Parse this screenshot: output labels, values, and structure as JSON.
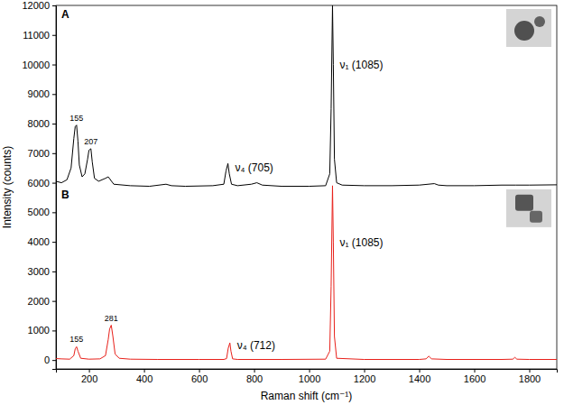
{
  "chart_data": {
    "type": "line",
    "x_label": "Raman shift (cm⁻¹)",
    "y_label": "Intensity (counts)",
    "xlim": [
      80,
      1900
    ],
    "xticks": [
      200,
      400,
      600,
      800,
      1000,
      1200,
      1400,
      1600,
      1800
    ],
    "ylim": [
      -300,
      12000
    ],
    "yticks": [
      0,
      1000,
      2000,
      3000,
      4000,
      5000,
      6000,
      7000,
      8000,
      9000,
      10000,
      11000,
      12000
    ],
    "series": [
      {
        "name": "A",
        "color": "#000000",
        "x": [
          80,
          100,
          120,
          135,
          145,
          150,
          155,
          160,
          165,
          175,
          185,
          195,
          200,
          207,
          212,
          220,
          235,
          260,
          270,
          290,
          350,
          420,
          480,
          500,
          550,
          650,
          690,
          698,
          705,
          710,
          718,
          740,
          790,
          810,
          830,
          900,
          1000,
          1060,
          1075,
          1080,
          1085,
          1088,
          1092,
          1100,
          1120,
          1200,
          1300,
          1400,
          1455,
          1470,
          1500,
          1600,
          1700,
          1750,
          1800,
          1900
        ],
        "values": [
          6050,
          6000,
          6100,
          6500,
          7500,
          7900,
          7950,
          7400,
          6600,
          6200,
          6300,
          6800,
          7100,
          7150,
          6700,
          6150,
          6050,
          6150,
          6200,
          5950,
          5900,
          5880,
          5950,
          5900,
          5880,
          5900,
          5950,
          6400,
          6650,
          6300,
          5950,
          5900,
          5950,
          6000,
          5920,
          5880,
          5880,
          5900,
          6300,
          8500,
          12000,
          10000,
          6800,
          6000,
          5920,
          5900,
          5900,
          5920,
          5970,
          5920,
          5900,
          5900,
          5920,
          5920,
          5920,
          5930
        ]
      },
      {
        "name": "B",
        "color": "#e8201a",
        "x": [
          80,
          100,
          130,
          145,
          150,
          155,
          160,
          170,
          200,
          240,
          260,
          270,
          275,
          281,
          287,
          295,
          310,
          350,
          450,
          600,
          690,
          700,
          706,
          712,
          716,
          722,
          740,
          900,
          1060,
          1075,
          1080,
          1085,
          1088,
          1092,
          1100,
          1200,
          1400,
          1425,
          1435,
          1445,
          1500,
          1700,
          1740,
          1748,
          1755,
          1800,
          1900
        ],
        "values": [
          50,
          40,
          30,
          150,
          380,
          450,
          300,
          60,
          30,
          40,
          150,
          700,
          1050,
          1180,
          800,
          200,
          60,
          30,
          20,
          20,
          20,
          50,
          400,
          580,
          300,
          40,
          20,
          20,
          30,
          300,
          2500,
          5900,
          4000,
          800,
          60,
          20,
          20,
          40,
          130,
          40,
          20,
          20,
          30,
          90,
          30,
          20,
          20
        ]
      }
    ],
    "annotations": [
      {
        "text": "155",
        "x": 155,
        "series": 0
      },
      {
        "text": "207",
        "x": 207,
        "series": 0
      },
      {
        "text": "ν₄ (705)",
        "x": 705,
        "series": 0
      },
      {
        "text": "ν₁ (1085)",
        "x": 1085,
        "series": 0
      },
      {
        "text": "155",
        "x": 155,
        "series": 1
      },
      {
        "text": "281",
        "x": 281,
        "series": 1
      },
      {
        "text": "ν₄ (712)",
        "x": 712,
        "series": 1
      },
      {
        "text": "ν₁ (1085)",
        "x": 1085,
        "series": 1
      }
    ]
  }
}
